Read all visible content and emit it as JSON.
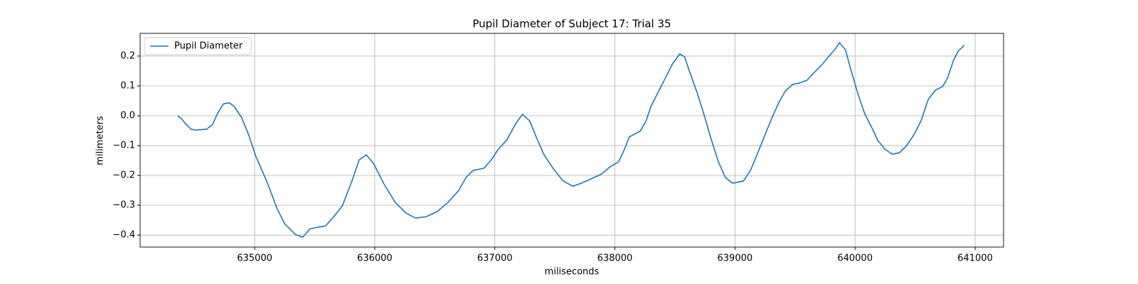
{
  "chart_data": {
    "type": "line",
    "title": "Pupil Diameter of Subject 17: Trial 35",
    "x_label": "miliseconds",
    "y_label": "milimeters",
    "x": [
      634360,
      634390,
      634430,
      634470,
      634510,
      634600,
      634650,
      634690,
      634740,
      634790,
      634830,
      634890,
      634950,
      635010,
      635100,
      635190,
      635250,
      635340,
      635400,
      635460,
      635520,
      635590,
      635660,
      635730,
      635810,
      635870,
      635930,
      635990,
      636080,
      636170,
      636260,
      636340,
      636430,
      636520,
      636610,
      636700,
      636760,
      636820,
      636910,
      636970,
      637030,
      637100,
      637170,
      637230,
      637290,
      637350,
      637410,
      637490,
      637570,
      637650,
      637720,
      637800,
      637890,
      637960,
      638030,
      638080,
      638120,
      638170,
      638210,
      638260,
      638300,
      638360,
      638420,
      638480,
      638540,
      638580,
      638620,
      638680,
      638740,
      638800,
      638860,
      638920,
      638980,
      639070,
      639130,
      639190,
      639250,
      639310,
      639370,
      639420,
      639480,
      639540,
      639600,
      639660,
      639720,
      639780,
      639840,
      639870,
      639920,
      639960,
      640020,
      640080,
      640140,
      640190,
      640250,
      640310,
      640370,
      640430,
      640490,
      640550,
      640610,
      640670,
      640730,
      640770,
      640820,
      640860,
      640910
    ],
    "series": [
      {
        "name": "Pupil Diameter",
        "color": "#1f77b4",
        "values": [
          0,
          -0.01,
          -0.029,
          -0.045,
          -0.048,
          -0.045,
          -0.029,
          0.007,
          0.04,
          0.043,
          0.031,
          -0.005,
          -0.064,
          -0.136,
          -0.219,
          -0.314,
          -0.362,
          -0.398,
          -0.407,
          -0.379,
          -0.374,
          -0.369,
          -0.338,
          -0.302,
          -0.219,
          -0.148,
          -0.131,
          -0.16,
          -0.231,
          -0.29,
          -0.326,
          -0.343,
          -0.338,
          -0.321,
          -0.29,
          -0.25,
          -0.207,
          -0.183,
          -0.176,
          -0.148,
          -0.112,
          -0.081,
          -0.029,
          0.005,
          -0.017,
          -0.076,
          -0.131,
          -0.179,
          -0.219,
          -0.236,
          -0.226,
          -0.212,
          -0.195,
          -0.171,
          -0.155,
          -0.112,
          -0.071,
          -0.06,
          -0.052,
          -0.017,
          0.031,
          0.079,
          0.126,
          0.174,
          0.207,
          0.198,
          0.15,
          0.083,
          0.007,
          -0.076,
          -0.152,
          -0.207,
          -0.226,
          -0.219,
          -0.183,
          -0.124,
          -0.064,
          -0.005,
          0.048,
          0.083,
          0.105,
          0.11,
          0.119,
          0.145,
          0.169,
          0.198,
          0.226,
          0.245,
          0.221,
          0.162,
          0.079,
          0.007,
          -0.04,
          -0.083,
          -0.112,
          -0.129,
          -0.124,
          -0.1,
          -0.064,
          -0.017,
          0.055,
          0.086,
          0.098,
          0.126,
          0.186,
          0.217,
          0.236
        ]
      }
    ],
    "xlim": [
      634046,
      641237
    ],
    "xticks": [
      635000,
      636000,
      637000,
      638000,
      639000,
      640000,
      641000
    ],
    "ylim": [
      -0.44,
      0.276
    ],
    "yticks": [
      {
        "value": -0.4,
        "label": "−0.4"
      },
      {
        "value": -0.3,
        "label": "−0.3"
      },
      {
        "value": -0.2,
        "label": "−0.2"
      },
      {
        "value": -0.1,
        "label": "−0.1"
      },
      {
        "value": 0,
        "label": "0.0"
      },
      0.1,
      0.2
    ],
    "grid": true,
    "legend": "upper left"
  }
}
